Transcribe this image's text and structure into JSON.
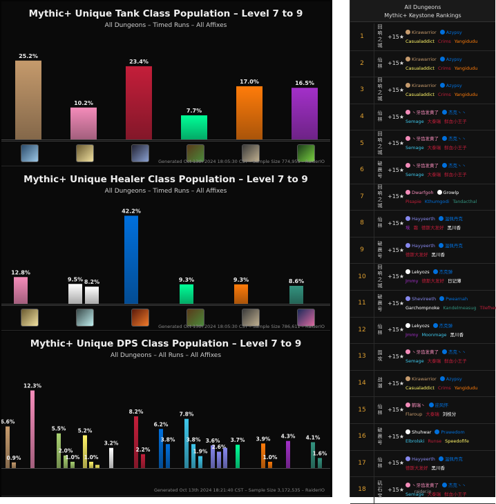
{
  "chart_data": [
    {
      "type": "bar",
      "title": "Mythic+ Unique Tank Class Population – Level 7 to 9",
      "subtitle": "All Dungeons – Timed Runs – All Affixes",
      "footer": "Generated Oct 13th 2024 18:05:30 CST – Sample Size 774,955 – RaiderIO",
      "categories": [
        "Warrior",
        "Paladin",
        "Death Knight",
        "Druid",
        "Monk",
        "Demon Hunter"
      ],
      "values": [
        25.2,
        10.2,
        23.4,
        7.7,
        17.0,
        16.5
      ],
      "labels": [
        "25.2%",
        "10.2%",
        "23.4%",
        "7.7%",
        "17.0%",
        "16.5%"
      ],
      "colors": [
        "#c59a6c",
        "#f48cba",
        "#c41e3a",
        "#00ff98",
        "#ff7c0a",
        "#a330c9"
      ],
      "ylim": [
        0,
        30
      ]
    },
    {
      "type": "bar",
      "title": "Mythic+ Unique Healer Class Population – Level 7 to 9",
      "subtitle": "All Dungeons – Timed Runs – All Affixes",
      "footer": "Generated Oct 13th 2024 18:05:30 CST – Sample Size 786,611 – RaiderIO",
      "categories": [
        "Paladin",
        "Priest (Disc)",
        "Priest (Holy)",
        "Shaman",
        "Monk",
        "Druid",
        "Evoker"
      ],
      "values": [
        12.8,
        9.5,
        8.2,
        42.2,
        9.3,
        9.3,
        8.6
      ],
      "labels": [
        "12.8%",
        "9.5%",
        "8.2%",
        "42.2%",
        "9.3%",
        "9.3%",
        "8.6%"
      ],
      "colors": [
        "#f48cba",
        "#ffffff",
        "#ffffff",
        "#0070dd",
        "#00ff98",
        "#ff7c0a",
        "#33937f"
      ],
      "ylim": [
        0,
        45
      ]
    },
    {
      "type": "bar",
      "title": "Mythic+ Unique DPS Class Population – Level 7 to 9",
      "subtitle": "All Dungeons – All Runs – All Affixes",
      "footer": "Generated Oct 13th 2024 18:21:40 CST – Sample Size 3,172,535 – RaiderIO",
      "values": [
        6.6,
        0.9,
        12.3,
        5.5,
        2.0,
        1.0,
        5.2,
        1.0,
        0.5,
        3.2,
        8.2,
        2.2,
        6.2,
        3.8,
        7.8,
        3.8,
        1.9,
        3.6,
        2.6,
        3.2,
        3.7,
        3.9,
        1.0,
        4.3,
        4.1,
        1.6
      ],
      "labels": [
        "6.6%",
        "0.9%",
        "12.3%",
        "5.5%",
        "2.0%",
        "1.0%",
        "5.2%",
        "1.0%",
        "",
        "3.2%",
        "8.2%",
        "2.2%",
        "6.2%",
        "3.8%",
        "7.8%",
        "3.8%",
        "1.9%",
        "3.6%",
        "2.6%",
        "",
        "3.7%",
        "3.9%",
        "1.0%",
        "4.3%",
        "4.1%",
        "1.6%"
      ],
      "colors": [
        "#c69b6d",
        "#c69b6d",
        "#f48cba",
        "#aad372",
        "#aad372",
        "#aad372",
        "#fff468",
        "#fff468",
        "#fff468",
        "#ffffff",
        "#c41e3a",
        "#c41e3a",
        "#0070dd",
        "#0070dd",
        "#3fc7eb",
        "#3fc7eb",
        "#3fc7eb",
        "#8788ee",
        "#8788ee",
        "#8788ee",
        "#00ff98",
        "#ff7c0a",
        "#ff7c0a",
        "#a330c9",
        "#33937f",
        "#33937f"
      ],
      "ylim": [
        0,
        14
      ]
    }
  ],
  "rankings": {
    "header_line1": "All Dungeons",
    "header_line2": "Mythic+ Keystone Rankings",
    "footer": "raider.io",
    "rows": [
      {
        "rank": "1",
        "dungeon": "回\n响\n之\n城",
        "level": "+15",
        "names": [
          [
            "Kirawarrior",
            "#c69b6d"
          ],
          [
            "Azypsy",
            "#0070dd"
          ],
          [
            "Casualaddict",
            "#fff468"
          ],
          [
            "Crims",
            "#c41e3a"
          ],
          [
            "Yangidudu",
            "#ff7c0a"
          ]
        ]
      },
      {
        "rank": "2",
        "dungeon": "仙\n林",
        "level": "+15",
        "names": [
          [
            "Kirawarrior",
            "#c69b6d"
          ],
          [
            "Azypsy",
            "#0070dd"
          ],
          [
            "Casualaddict",
            "#fff468"
          ],
          [
            "Crims",
            "#c41e3a"
          ],
          [
            "Yangidudu",
            "#ff7c0a"
          ]
        ]
      },
      {
        "rank": "3",
        "dungeon": "回\n响\n之\n城",
        "level": "+15",
        "names": [
          [
            "Kirawarrior",
            "#c69b6d"
          ],
          [
            "Azypsy",
            "#0070dd"
          ],
          [
            "Casualaddict",
            "#fff468"
          ],
          [
            "Crims",
            "#c41e3a"
          ],
          [
            "Yangidudu",
            "#ff7c0a"
          ]
        ]
      },
      {
        "rank": "4",
        "dungeon": "仙\n林",
        "level": "+15",
        "names": [
          [
            "丶牙齿发黄了",
            "#f48cba"
          ],
          [
            "杰克丶丶",
            "#0070dd"
          ],
          [
            "Semage",
            "#3fc7eb"
          ],
          [
            "大泰瑞",
            "#c41e3a"
          ],
          [
            "鲜血小王子",
            "#c41e3a"
          ]
        ]
      },
      {
        "rank": "5",
        "dungeon": "回\n响\n之\n城",
        "level": "+15",
        "names": [
          [
            "丶牙齿发黄了",
            "#f48cba"
          ],
          [
            "杰克丶丶",
            "#0070dd"
          ],
          [
            "Semage",
            "#3fc7eb"
          ],
          [
            "大泰瑞",
            "#c41e3a"
          ],
          [
            "鲜血小王子",
            "#c41e3a"
          ]
        ]
      },
      {
        "rank": "6",
        "dungeon": "破\n晨\n号",
        "level": "+15",
        "names": [
          [
            "丶牙齿发黄了",
            "#f48cba"
          ],
          [
            "杰克丶丶",
            "#0070dd"
          ],
          [
            "Semage",
            "#3fc7eb"
          ],
          [
            "大泰瑞",
            "#c41e3a"
          ],
          [
            "鲜血小王子",
            "#c41e3a"
          ]
        ]
      },
      {
        "rank": "7",
        "dungeon": "回\n响\n之\n城",
        "level": "+15",
        "names": [
          [
            "Dwarfgoh",
            "#f48cba"
          ],
          [
            "Growlp",
            "#ffffff"
          ],
          [
            "Pisapie",
            "#c41e3a"
          ],
          [
            "Kthumgodi",
            "#0070dd"
          ],
          [
            "Tandacthal",
            "#33937f"
          ]
        ]
      },
      {
        "rank": "8",
        "dungeon": "仙\n林",
        "level": "+15",
        "names": [
          [
            "Hayyeerth",
            "#8788ee"
          ],
          [
            "温佩丹克",
            "#0070dd"
          ],
          [
            "埃",
            "#a330c9"
          ],
          [
            "霜",
            "#c41e3a"
          ],
          [
            "德斯大发好",
            "#c41e3a"
          ],
          [
            "黑川香",
            "#ffffff"
          ]
        ]
      },
      {
        "rank": "9",
        "dungeon": "破\n晨\n号",
        "level": "+15",
        "names": [
          [
            "Hayyeerth",
            "#8788ee"
          ],
          [
            "温佩丹克",
            "#0070dd"
          ],
          [
            "德斯大发好",
            "#c41e3a"
          ],
          [
            "黑川香",
            "#ffffff"
          ]
        ]
      },
      {
        "rank": "10",
        "dungeon": "回\n响\n之\n城",
        "level": "+15",
        "names": [
          [
            "Lekyozs",
            "#ffffff"
          ],
          [
            "杰克弹",
            "#0070dd"
          ],
          [
            "Jmmy",
            "#a330c9"
          ],
          [
            "德斯大发好",
            "#c41e3a"
          ],
          [
            "日记薄",
            "#ffffff"
          ]
        ]
      },
      {
        "rank": "11",
        "dungeon": "破\n晨\n号",
        "level": "+15",
        "names": [
          [
            "Shevireeth",
            "#8788ee"
          ],
          [
            "Pwearnah",
            "#0070dd"
          ],
          [
            "Garchompnoke",
            "#ffffff"
          ],
          [
            "Kandelmeasug",
            "#33937f"
          ],
          [
            "Tilefhemosh",
            "#c41e3a"
          ]
        ]
      },
      {
        "rank": "12",
        "dungeon": "仙\n林",
        "level": "+15",
        "names": [
          [
            "Lekyozs",
            "#ffffff"
          ],
          [
            "杰克弹",
            "#0070dd"
          ],
          [
            "Jmmy",
            "#a330c9"
          ],
          [
            "Moonmage",
            "#3fc7eb"
          ],
          [
            "黑川香",
            "#ffffff"
          ]
        ]
      },
      {
        "rank": "13",
        "dungeon": "围\n攻",
        "level": "+15",
        "names": [
          [
            "丶牙齿发黄了",
            "#f48cba"
          ],
          [
            "杰克丶丶",
            "#0070dd"
          ],
          [
            "Semage",
            "#3fc7eb"
          ],
          [
            "大泰瑞",
            "#c41e3a"
          ],
          [
            "鲜血小王子",
            "#c41e3a"
          ]
        ]
      },
      {
        "rank": "14",
        "dungeon": "战\n潮",
        "level": "+15",
        "names": [
          [
            "Kirawarrior",
            "#c69b6d"
          ],
          [
            "Azypsy",
            "#0070dd"
          ],
          [
            "Casualaddict",
            "#fff468"
          ],
          [
            "Crims",
            "#c41e3a"
          ],
          [
            "Yangidudu",
            "#ff7c0a"
          ]
        ]
      },
      {
        "rank": "15",
        "dungeon": "仙\n林",
        "level": "+15",
        "names": [
          [
            "鹤瑞丶",
            "#f48cba"
          ],
          [
            "迎风怀",
            "#0070dd"
          ],
          [
            "Flaroup",
            "#c69b6d"
          ],
          [
            "大泰瑞",
            "#c41e3a"
          ],
          [
            "刘枝分",
            "#ffffff"
          ]
        ]
      },
      {
        "rank": "16",
        "dungeon": "破\n晨\n号",
        "level": "+15",
        "names": [
          [
            "Shuhwar",
            "#ffffff"
          ],
          [
            "Prawedom",
            "#0070dd"
          ],
          [
            "Elbrolski",
            "#3fc7eb"
          ],
          [
            "Runse",
            "#c41e3a"
          ],
          [
            "Speedofife",
            "#fff468"
          ]
        ]
      },
      {
        "rank": "17",
        "dungeon": "仙\n林",
        "level": "+15",
        "names": [
          [
            "Hayyeerth",
            "#8788ee"
          ],
          [
            "温佩丹克",
            "#0070dd"
          ],
          [
            "德斯大发好",
            "#c41e3a"
          ],
          [
            "黑川香",
            "#ffffff"
          ]
        ]
      },
      {
        "rank": "18",
        "dungeon": "矶\n石\n宝",
        "level": "+15",
        "names": [
          [
            "丶牙齿发黄了",
            "#f48cba"
          ],
          [
            "杰克丶丶",
            "#0070dd"
          ],
          [
            "Semage",
            "#3fc7eb"
          ],
          [
            "大泰瑞",
            "#c41e3a"
          ],
          [
            "鲜血小王子",
            "#c41e3a"
          ]
        ]
      }
    ]
  },
  "icons": {
    "tank": [
      "warrior-class-icon",
      "paladin-class-icon",
      "death-knight-class-icon",
      "druid-class-icon",
      "monk-class-icon",
      "demon-hunter-class-icon"
    ],
    "healer": [
      "paladin-class-icon",
      "priest-class-icon",
      "shaman-class-icon",
      "druid-class-icon",
      "monk-class-icon",
      "evoker-class-icon"
    ]
  }
}
